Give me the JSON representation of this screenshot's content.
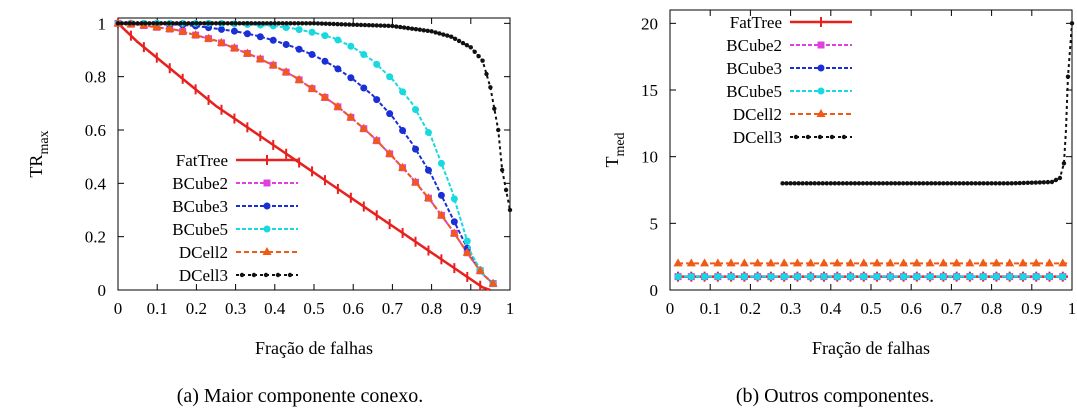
{
  "figure": {
    "caption_a": "(a) Maior componente conexo.",
    "caption_b": "(b) Outros componentes."
  },
  "chart_data": [
    {
      "type": "line",
      "xlabel": "Fração de falhas",
      "ylabel_main": "TR",
      "ylabel_sub": "max",
      "xlim": [
        0,
        1
      ],
      "ylim": [
        0,
        1.02
      ],
      "xticks": [
        "0",
        "0.1",
        "0.2",
        "0.3",
        "0.4",
        "0.5",
        "0.6",
        "0.7",
        "0.8",
        "0.9",
        "1"
      ],
      "yticks": [
        "0",
        "0.2",
        "0.4",
        "0.6",
        "0.8",
        "1"
      ],
      "legend_position": "bottom-center",
      "series": [
        {
          "name": "FatTree",
          "color": "#e8201e",
          "marker": "bar",
          "x": [
            0,
            0.05,
            0.1,
            0.15,
            0.2,
            0.25,
            0.3,
            0.35,
            0.4,
            0.45,
            0.5,
            0.55,
            0.6,
            0.65,
            0.7,
            0.75,
            0.8,
            0.85,
            0.9,
            0.93,
            0.95
          ],
          "y": [
            1.0,
            0.93,
            0.87,
            0.81,
            0.75,
            0.69,
            0.64,
            0.59,
            0.54,
            0.49,
            0.44,
            0.39,
            0.34,
            0.29,
            0.24,
            0.19,
            0.14,
            0.09,
            0.04,
            0.01,
            0.0
          ]
        },
        {
          "name": "BCube2",
          "color": "#e040e0",
          "marker": "square",
          "x": [
            0,
            0.05,
            0.1,
            0.15,
            0.2,
            0.25,
            0.3,
            0.35,
            0.4,
            0.45,
            0.5,
            0.55,
            0.6,
            0.65,
            0.7,
            0.75,
            0.8,
            0.85,
            0.9,
            0.93,
            0.96
          ],
          "y": [
            1.0,
            0.995,
            0.985,
            0.975,
            0.955,
            0.935,
            0.905,
            0.875,
            0.84,
            0.8,
            0.75,
            0.7,
            0.64,
            0.575,
            0.5,
            0.42,
            0.33,
            0.23,
            0.12,
            0.06,
            0.02
          ]
        },
        {
          "name": "BCube3",
          "color": "#1a2fd6",
          "marker": "circle",
          "x": [
            0,
            0.05,
            0.1,
            0.15,
            0.2,
            0.25,
            0.3,
            0.35,
            0.4,
            0.45,
            0.5,
            0.55,
            0.6,
            0.65,
            0.7,
            0.75,
            0.8,
            0.85,
            0.9,
            0.93,
            0.96
          ],
          "y": [
            1.0,
            1.0,
            1.0,
            0.995,
            0.99,
            0.98,
            0.97,
            0.955,
            0.935,
            0.91,
            0.88,
            0.84,
            0.79,
            0.73,
            0.65,
            0.55,
            0.43,
            0.28,
            0.13,
            0.06,
            0.02
          ]
        },
        {
          "name": "BCube5",
          "color": "#18d8e0",
          "marker": "circle",
          "x": [
            0,
            0.05,
            0.1,
            0.15,
            0.2,
            0.25,
            0.3,
            0.35,
            0.4,
            0.45,
            0.5,
            0.55,
            0.6,
            0.65,
            0.7,
            0.75,
            0.8,
            0.85,
            0.9,
            0.93,
            0.96
          ],
          "y": [
            1.0,
            1.0,
            1.0,
            1.0,
            1.0,
            1.0,
            0.998,
            0.995,
            0.99,
            0.98,
            0.965,
            0.945,
            0.91,
            0.86,
            0.79,
            0.7,
            0.57,
            0.38,
            0.14,
            0.06,
            0.02
          ]
        },
        {
          "name": "DCell2",
          "color": "#f05a14",
          "marker": "triangle",
          "x": [
            0,
            0.05,
            0.1,
            0.15,
            0.2,
            0.25,
            0.3,
            0.35,
            0.4,
            0.45,
            0.5,
            0.55,
            0.6,
            0.65,
            0.7,
            0.75,
            0.8,
            0.85,
            0.9,
            0.93,
            0.96
          ],
          "y": [
            1.0,
            0.995,
            0.985,
            0.975,
            0.955,
            0.935,
            0.905,
            0.875,
            0.84,
            0.8,
            0.75,
            0.7,
            0.64,
            0.575,
            0.5,
            0.42,
            0.33,
            0.23,
            0.12,
            0.06,
            0.02
          ]
        },
        {
          "name": "DCell3",
          "color": "#111111",
          "marker": "dot",
          "x": [
            0,
            0.1,
            0.2,
            0.3,
            0.4,
            0.5,
            0.6,
            0.7,
            0.8,
            0.85,
            0.9,
            0.93,
            0.95,
            0.97,
            0.98,
            1.0
          ],
          "y": [
            1.0,
            1.0,
            1.0,
            1.0,
            1.0,
            1.0,
            0.995,
            0.99,
            0.97,
            0.95,
            0.91,
            0.86,
            0.76,
            0.6,
            0.45,
            0.3
          ]
        }
      ]
    },
    {
      "type": "line",
      "xlabel": "Fração de falhas",
      "ylabel_main": "T",
      "ylabel_sub": "med",
      "xlim": [
        0,
        1
      ],
      "ylim": [
        0,
        21
      ],
      "xticks": [
        "0",
        "0.1",
        "0.2",
        "0.3",
        "0.4",
        "0.5",
        "0.6",
        "0.7",
        "0.8",
        "0.9",
        "1"
      ],
      "yticks": [
        "0",
        "5",
        "10",
        "15",
        "20"
      ],
      "legend_position": "top-left",
      "series": [
        {
          "name": "FatTree",
          "color": "#e8201e",
          "marker": "bar",
          "x": [
            0.02,
            0.99
          ],
          "y": [
            1.0,
            1.0
          ]
        },
        {
          "name": "BCube2",
          "color": "#e040e0",
          "marker": "square",
          "x": [
            0.02,
            0.99
          ],
          "y": [
            1.0,
            1.0
          ]
        },
        {
          "name": "BCube3",
          "color": "#1a2fd6",
          "marker": "circle",
          "x": [
            0.02,
            0.99
          ],
          "y": [
            1.0,
            1.0
          ]
        },
        {
          "name": "BCube5",
          "color": "#18d8e0",
          "marker": "circle",
          "x": [
            0.02,
            0.99
          ],
          "y": [
            1.0,
            1.0
          ]
        },
        {
          "name": "DCell2",
          "color": "#f05a14",
          "marker": "triangle",
          "x": [
            0.02,
            0.99
          ],
          "y": [
            2.0,
            2.0
          ]
        },
        {
          "name": "DCell3",
          "color": "#111111",
          "marker": "dot",
          "x": [
            0.28,
            0.35,
            0.45,
            0.55,
            0.65,
            0.75,
            0.85,
            0.95,
            0.97,
            0.98,
            0.985,
            0.99,
            1.0
          ],
          "y": [
            8.0,
            8.0,
            8.0,
            8.0,
            8.0,
            8.0,
            8.0,
            8.1,
            8.4,
            9.5,
            12.0,
            16.0,
            20.0
          ]
        }
      ]
    }
  ]
}
